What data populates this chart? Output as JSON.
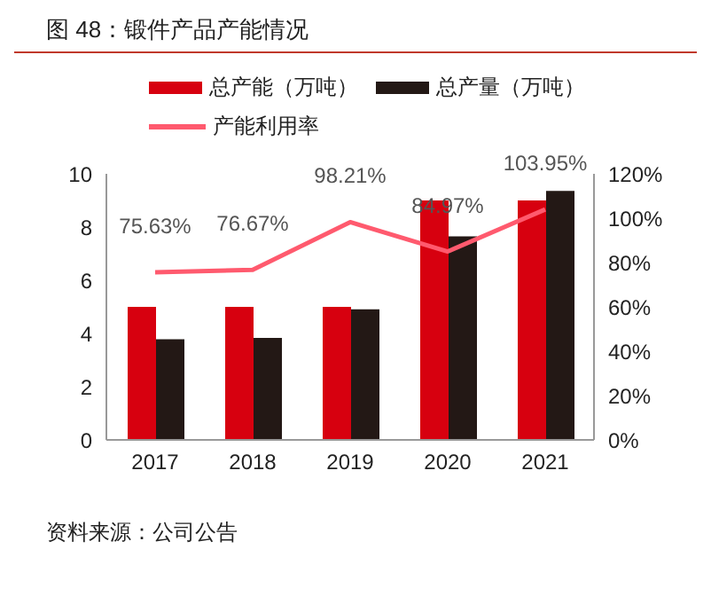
{
  "chart_data": {
    "type": "bar",
    "title": "图 48：锻件产品产能情况",
    "categories": [
      "2017",
      "2018",
      "2019",
      "2020",
      "2021"
    ],
    "series": [
      {
        "name": "总产能（万吨）",
        "color": "#d7000f",
        "values": [
          5,
          5,
          5,
          9,
          9
        ]
      },
      {
        "name": "总产量（万吨）",
        "color": "#231815",
        "values": [
          3.78,
          3.83,
          4.91,
          7.65,
          9.36
        ]
      },
      {
        "name": "产能利用率",
        "type": "line",
        "axis": "y2",
        "color": "#ff5a6e",
        "values": [
          75.63,
          76.67,
          98.21,
          84.97,
          103.95
        ],
        "value_labels": [
          "75.63%",
          "76.67%",
          "98.21%",
          "84.97%",
          "103.95%"
        ]
      }
    ],
    "ylim": [
      0,
      10
    ],
    "yticks": [
      0,
      2,
      4,
      6,
      8,
      10
    ],
    "y2lim": [
      0,
      120
    ],
    "y2ticks": [
      {
        "value": 0,
        "label": "0%"
      },
      {
        "value": 20,
        "label": "20%"
      },
      {
        "value": 40,
        "label": "40%"
      },
      {
        "value": 60,
        "label": "60%"
      },
      {
        "value": 80,
        "label": "80%"
      },
      {
        "value": 100,
        "label": "100%"
      },
      {
        "value": 120,
        "label": "120%"
      }
    ],
    "legend": "top",
    "marker": "none",
    "annotations": [
      "资料来源：公司公告"
    ]
  }
}
